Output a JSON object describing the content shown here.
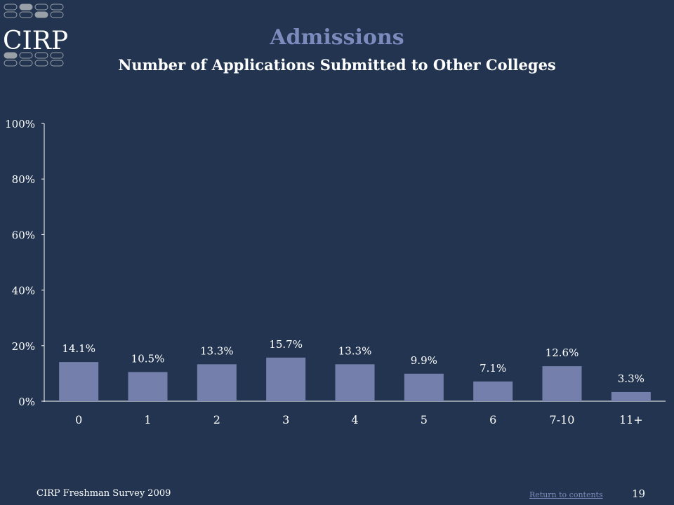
{
  "logo": {
    "text": "CIRP"
  },
  "header": {
    "title": "Admissions",
    "subtitle": "Number of Applications Submitted to Other Colleges"
  },
  "colors": {
    "background": "#22344f",
    "bar": "#7480ab",
    "title": "#7c8bbd",
    "text": "#ffffff"
  },
  "chart_data": {
    "type": "bar",
    "categories": [
      "0",
      "1",
      "2",
      "3",
      "4",
      "5",
      "6",
      "7-10",
      "11+"
    ],
    "values": [
      14.1,
      10.5,
      13.3,
      15.7,
      13.3,
      9.9,
      7.1,
      12.6,
      3.3
    ],
    "value_labels": [
      "14.1%",
      "10.5%",
      "13.3%",
      "15.7%",
      "13.3%",
      "9.9%",
      "7.1%",
      "12.6%",
      "3.3%"
    ],
    "yticks": [
      "0%",
      "20%",
      "40%",
      "60%",
      "80%",
      "100%"
    ],
    "ylim": [
      0,
      100
    ],
    "grid": false,
    "legend": "none"
  },
  "footer": {
    "survey": "CIRP Freshman Survey 2009",
    "return_link": "Return to contents",
    "page_number": "19"
  }
}
